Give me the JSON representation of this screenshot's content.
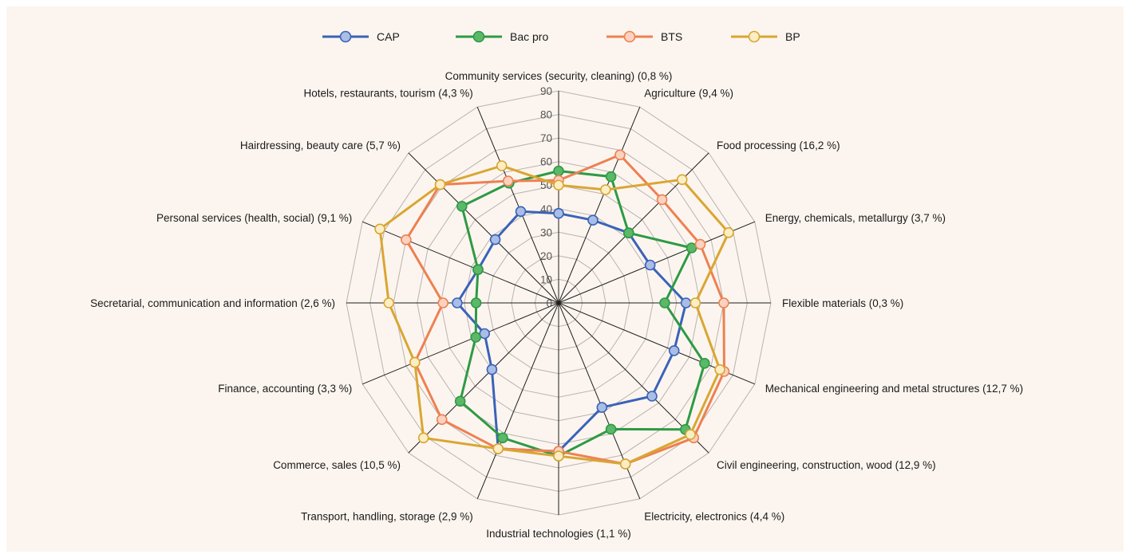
{
  "chart_data": {
    "type": "radar",
    "title": "",
    "rlim": [
      0,
      90
    ],
    "ticks": [
      0,
      10,
      20,
      30,
      40,
      50,
      60,
      70,
      80,
      90
    ],
    "legend_position": "top",
    "grid": true,
    "categories": [
      "Community services (security, cleaning) (0,8 %)",
      "Agriculture (9,4 %)",
      "Food processing (16,2 %)",
      "Energy, chemicals, metallurgy (3,7 %)",
      "Flexible materials (0,3 %)",
      "Mechanical engineering and metal structures (12,7 %)",
      "Civil engineering, construction, wood (12,9 %)",
      "Electricity, electronics (4,4 %)",
      "Industrial technologies (1,1 %)",
      "Transport, handling, storage (2,9 %)",
      "Commerce, sales (10,5 %)",
      "Finance, accounting (3,3 %)",
      "Secretarial, communication and information (2,6 %)",
      "Personal services (health, social) (9,1 %)",
      "Hairdressing, beauty care (5,7 %)",
      "Hotels, restaurants, tourism (4,3 %)"
    ],
    "series": [
      {
        "name": "CAP",
        "color": "#3a63b8",
        "marker": "#a9bde6",
        "values": [
          38,
          38,
          42,
          42,
          54,
          53,
          56,
          48,
          63,
          67,
          40,
          34,
          43,
          37,
          38,
          42
        ]
      },
      {
        "name": "Bac pro",
        "color": "#2e9a44",
        "marker": "#5bb868",
        "values": [
          56,
          58,
          42,
          61,
          45,
          67,
          76,
          58,
          65,
          62,
          59,
          38,
          35,
          37,
          58,
          55
        ]
      },
      {
        "name": "BTS",
        "color": "#ee8051",
        "marker": "#fbd2c0",
        "values": [
          52,
          68,
          62,
          65,
          70,
          76,
          81,
          74,
          63,
          67,
          70,
          66,
          49,
          70,
          71,
          56
        ]
      },
      {
        "name": "BP",
        "color": "#d9a632",
        "marker": "#fbeec4",
        "values": [
          50,
          52,
          74,
          78,
          58,
          74,
          79,
          74,
          65,
          67,
          81,
          66,
          72,
          82,
          71,
          63
        ]
      }
    ]
  }
}
